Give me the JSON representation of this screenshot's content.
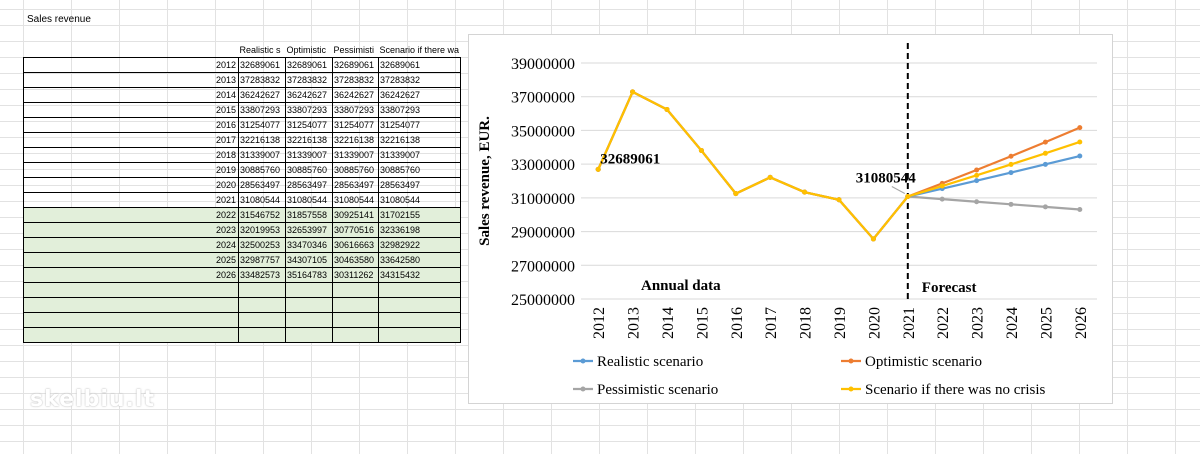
{
  "sheet": {
    "title": "Sales revenue",
    "columns": [
      "",
      "Realistic s",
      "Optimistic",
      "Pessimisti",
      "Scenario if there wa"
    ],
    "rows": [
      [
        "2012",
        "32689061",
        "32689061",
        "32689061",
        "32689061"
      ],
      [
        "2013",
        "37283832",
        "37283832",
        "37283832",
        "37283832"
      ],
      [
        "2014",
        "36242627",
        "36242627",
        "36242627",
        "36242627"
      ],
      [
        "2015",
        "33807293",
        "33807293",
        "33807293",
        "33807293"
      ],
      [
        "2016",
        "31254077",
        "31254077",
        "31254077",
        "31254077"
      ],
      [
        "2017",
        "32216138",
        "32216138",
        "32216138",
        "32216138"
      ],
      [
        "2018",
        "31339007",
        "31339007",
        "31339007",
        "31339007"
      ],
      [
        "2019",
        "30885760",
        "30885760",
        "30885760",
        "30885760"
      ],
      [
        "2020",
        "28563497",
        "28563497",
        "28563497",
        "28563497"
      ],
      [
        "2021",
        "31080544",
        "31080544",
        "31080544",
        "31080544"
      ],
      [
        "2022",
        "31546752",
        "31857558",
        "30925141",
        "31702155"
      ],
      [
        "2023",
        "32019953",
        "32653997",
        "30770516",
        "32336198"
      ],
      [
        "2024",
        "32500253",
        "33470346",
        "30616663",
        "32982922"
      ],
      [
        "2025",
        "32987757",
        "34307105",
        "30463580",
        "33642580"
      ],
      [
        "2026",
        "33482573",
        "35164783",
        "30311262",
        "34315432"
      ]
    ],
    "empty_green_rows": 4
  },
  "watermark": "skelbiu.lt",
  "chart_data": {
    "type": "line",
    "title": "",
    "xlabel": "",
    "ylabel": "Sales revenue, EUR.",
    "x": [
      "2012",
      "2013",
      "2014",
      "2015",
      "2016",
      "2017",
      "2018",
      "2019",
      "2020",
      "2021",
      "2022",
      "2023",
      "2024",
      "2025",
      "2026"
    ],
    "ylim": [
      25000000,
      39000000
    ],
    "yticks": [
      "25000000",
      "27000000",
      "29000000",
      "31000000",
      "33000000",
      "35000000",
      "37000000",
      "39000000"
    ],
    "grid": true,
    "legend_position": "bottom",
    "series": [
      {
        "name": "Realistic scenario",
        "color": "#5b9bd5",
        "values": [
          32689061,
          37283832,
          36242627,
          33807293,
          31254077,
          32216138,
          31339007,
          30885760,
          28563497,
          31080544,
          31546752,
          32019953,
          32500253,
          32987757,
          33482573
        ]
      },
      {
        "name": "Optimistic scenario",
        "color": "#ed7d31",
        "values": [
          32689061,
          37283832,
          36242627,
          33807293,
          31254077,
          32216138,
          31339007,
          30885760,
          28563497,
          31080544,
          31857558,
          32653997,
          33470346,
          34307105,
          35164783
        ]
      },
      {
        "name": "Pessimistic scenario",
        "color": "#a5a5a5",
        "values": [
          32689061,
          37283832,
          36242627,
          33807293,
          31254077,
          32216138,
          31339007,
          30885760,
          28563497,
          31080544,
          30925141,
          30770516,
          30616663,
          30463580,
          30311262
        ]
      },
      {
        "name": "Scenario if there was no crisis",
        "color": "#ffc000",
        "values": [
          32689061,
          37283832,
          36242627,
          33807293,
          31254077,
          32216138,
          31339007,
          30885760,
          28563497,
          31080544,
          31702155,
          32336198,
          32982922,
          33642580,
          34315432
        ]
      }
    ],
    "divider_after": "2021",
    "annotations": [
      {
        "text": "32689061",
        "x": "2012",
        "y": 32689061
      },
      {
        "text": "31080544",
        "x": "2021",
        "y": 31080544
      }
    ],
    "region_labels": [
      "Annual data",
      "Forecast"
    ]
  }
}
